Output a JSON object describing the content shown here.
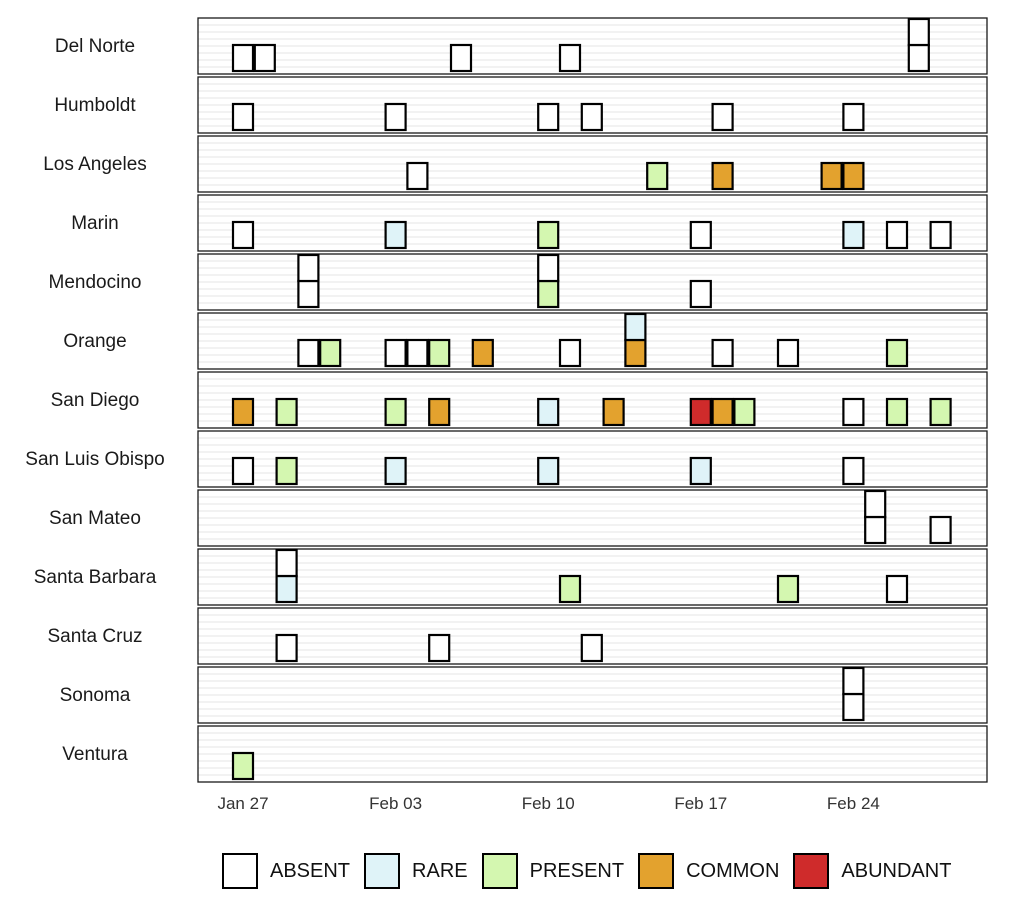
{
  "chart_data": {
    "type": "heatmap",
    "title": "",
    "xlabel": "",
    "ylabel": "",
    "x_ticks": [
      "Jan 27",
      "Feb 03",
      "Feb 10",
      "Feb 17",
      "Feb 24"
    ],
    "rows": [
      "Del Norte",
      "Humboldt",
      "Los Angeles",
      "Marin",
      "Mendocino",
      "Orange",
      "San Diego",
      "San Luis Obispo",
      "San Mateo",
      "Santa Barbara",
      "Santa Cruz",
      "Sonoma",
      "Ventura"
    ],
    "categories": [
      {
        "name": "ABSENT",
        "color": "#ffffff"
      },
      {
        "name": "RARE",
        "color": "#dff3f8"
      },
      {
        "name": "PRESENT",
        "color": "#d4f7b0"
      },
      {
        "name": "COMMON",
        "color": "#e3a22e"
      },
      {
        "name": "ABUNDANT",
        "color": "#cf2b2b"
      }
    ],
    "observations": [
      {
        "row": "Del Norte",
        "date": "2024-01-27",
        "values": [
          "ABSENT"
        ]
      },
      {
        "row": "Del Norte",
        "date": "2024-01-28",
        "values": [
          "ABSENT"
        ]
      },
      {
        "row": "Del Norte",
        "date": "2024-02-06",
        "values": [
          "ABSENT"
        ]
      },
      {
        "row": "Del Norte",
        "date": "2024-02-11",
        "values": [
          "ABSENT"
        ]
      },
      {
        "row": "Del Norte",
        "date": "2024-02-27",
        "values": [
          "ABSENT",
          "ABSENT"
        ]
      },
      {
        "row": "Humboldt",
        "date": "2024-01-27",
        "values": [
          "ABSENT"
        ]
      },
      {
        "row": "Humboldt",
        "date": "2024-02-03",
        "values": [
          "ABSENT"
        ]
      },
      {
        "row": "Humboldt",
        "date": "2024-02-10",
        "values": [
          "ABSENT"
        ]
      },
      {
        "row": "Humboldt",
        "date": "2024-02-12",
        "values": [
          "ABSENT"
        ]
      },
      {
        "row": "Humboldt",
        "date": "2024-02-18",
        "values": [
          "ABSENT"
        ]
      },
      {
        "row": "Humboldt",
        "date": "2024-02-24",
        "values": [
          "ABSENT"
        ]
      },
      {
        "row": "Los Angeles",
        "date": "2024-02-04",
        "values": [
          "ABSENT"
        ]
      },
      {
        "row": "Los Angeles",
        "date": "2024-02-15",
        "values": [
          "PRESENT"
        ]
      },
      {
        "row": "Los Angeles",
        "date": "2024-02-18",
        "values": [
          "COMMON"
        ]
      },
      {
        "row": "Los Angeles",
        "date": "2024-02-23",
        "values": [
          "COMMON"
        ]
      },
      {
        "row": "Los Angeles",
        "date": "2024-02-24",
        "values": [
          "COMMON"
        ]
      },
      {
        "row": "Marin",
        "date": "2024-01-27",
        "values": [
          "ABSENT"
        ]
      },
      {
        "row": "Marin",
        "date": "2024-02-03",
        "values": [
          "RARE"
        ]
      },
      {
        "row": "Marin",
        "date": "2024-02-10",
        "values": [
          "PRESENT"
        ]
      },
      {
        "row": "Marin",
        "date": "2024-02-17",
        "values": [
          "ABSENT"
        ]
      },
      {
        "row": "Marin",
        "date": "2024-02-24",
        "values": [
          "RARE"
        ]
      },
      {
        "row": "Marin",
        "date": "2024-02-26",
        "values": [
          "ABSENT"
        ]
      },
      {
        "row": "Marin",
        "date": "2024-02-28",
        "values": [
          "ABSENT"
        ]
      },
      {
        "row": "Mendocino",
        "date": "2024-01-30",
        "values": [
          "ABSENT",
          "ABSENT"
        ]
      },
      {
        "row": "Mendocino",
        "date": "2024-02-10",
        "values": [
          "PRESENT",
          "ABSENT"
        ]
      },
      {
        "row": "Mendocino",
        "date": "2024-02-17",
        "values": [
          "ABSENT"
        ]
      },
      {
        "row": "Orange",
        "date": "2024-01-30",
        "values": [
          "ABSENT"
        ]
      },
      {
        "row": "Orange",
        "date": "2024-01-31",
        "values": [
          "PRESENT"
        ]
      },
      {
        "row": "Orange",
        "date": "2024-02-03",
        "values": [
          "ABSENT"
        ]
      },
      {
        "row": "Orange",
        "date": "2024-02-04",
        "values": [
          "ABSENT"
        ]
      },
      {
        "row": "Orange",
        "date": "2024-02-05",
        "values": [
          "PRESENT"
        ]
      },
      {
        "row": "Orange",
        "date": "2024-02-07",
        "values": [
          "COMMON"
        ]
      },
      {
        "row": "Orange",
        "date": "2024-02-11",
        "values": [
          "ABSENT"
        ]
      },
      {
        "row": "Orange",
        "date": "2024-02-14",
        "values": [
          "COMMON",
          "RARE"
        ]
      },
      {
        "row": "Orange",
        "date": "2024-02-18",
        "values": [
          "ABSENT"
        ]
      },
      {
        "row": "Orange",
        "date": "2024-02-21",
        "values": [
          "ABSENT"
        ]
      },
      {
        "row": "Orange",
        "date": "2024-02-26",
        "values": [
          "PRESENT"
        ]
      },
      {
        "row": "San Diego",
        "date": "2024-01-27",
        "values": [
          "COMMON"
        ]
      },
      {
        "row": "San Diego",
        "date": "2024-01-29",
        "values": [
          "PRESENT"
        ]
      },
      {
        "row": "San Diego",
        "date": "2024-02-03",
        "values": [
          "PRESENT"
        ]
      },
      {
        "row": "San Diego",
        "date": "2024-02-05",
        "values": [
          "COMMON"
        ]
      },
      {
        "row": "San Diego",
        "date": "2024-02-10",
        "values": [
          "RARE"
        ]
      },
      {
        "row": "San Diego",
        "date": "2024-02-13",
        "values": [
          "COMMON"
        ]
      },
      {
        "row": "San Diego",
        "date": "2024-02-17",
        "values": [
          "ABUNDANT"
        ]
      },
      {
        "row": "San Diego",
        "date": "2024-02-18",
        "values": [
          "COMMON"
        ]
      },
      {
        "row": "San Diego",
        "date": "2024-02-19",
        "values": [
          "PRESENT"
        ]
      },
      {
        "row": "San Diego",
        "date": "2024-02-24",
        "values": [
          "ABSENT"
        ]
      },
      {
        "row": "San Diego",
        "date": "2024-02-26",
        "values": [
          "PRESENT"
        ]
      },
      {
        "row": "San Diego",
        "date": "2024-02-28",
        "values": [
          "PRESENT"
        ]
      },
      {
        "row": "San Luis Obispo",
        "date": "2024-01-27",
        "values": [
          "ABSENT"
        ]
      },
      {
        "row": "San Luis Obispo",
        "date": "2024-01-29",
        "values": [
          "PRESENT"
        ]
      },
      {
        "row": "San Luis Obispo",
        "date": "2024-02-03",
        "values": [
          "RARE"
        ]
      },
      {
        "row": "San Luis Obispo",
        "date": "2024-02-10",
        "values": [
          "RARE"
        ]
      },
      {
        "row": "San Luis Obispo",
        "date": "2024-02-17",
        "values": [
          "RARE"
        ]
      },
      {
        "row": "San Luis Obispo",
        "date": "2024-02-24",
        "values": [
          "ABSENT"
        ]
      },
      {
        "row": "San Mateo",
        "date": "2024-02-25",
        "values": [
          "ABSENT",
          "ABSENT"
        ]
      },
      {
        "row": "San Mateo",
        "date": "2024-02-28",
        "values": [
          "ABSENT"
        ]
      },
      {
        "row": "Santa Barbara",
        "date": "2024-01-29",
        "values": [
          "RARE",
          "ABSENT"
        ]
      },
      {
        "row": "Santa Barbara",
        "date": "2024-02-11",
        "values": [
          "PRESENT"
        ]
      },
      {
        "row": "Santa Barbara",
        "date": "2024-02-21",
        "values": [
          "PRESENT"
        ]
      },
      {
        "row": "Santa Barbara",
        "date": "2024-02-26",
        "values": [
          "ABSENT"
        ]
      },
      {
        "row": "Santa Cruz",
        "date": "2024-01-29",
        "values": [
          "ABSENT"
        ]
      },
      {
        "row": "Santa Cruz",
        "date": "2024-02-05",
        "values": [
          "ABSENT"
        ]
      },
      {
        "row": "Santa Cruz",
        "date": "2024-02-12",
        "values": [
          "ABSENT"
        ]
      },
      {
        "row": "Sonoma",
        "date": "2024-02-24",
        "values": [
          "ABSENT",
          "ABSENT"
        ]
      },
      {
        "row": "Ventura",
        "date": "2024-01-27",
        "values": [
          "PRESENT"
        ]
      }
    ]
  }
}
